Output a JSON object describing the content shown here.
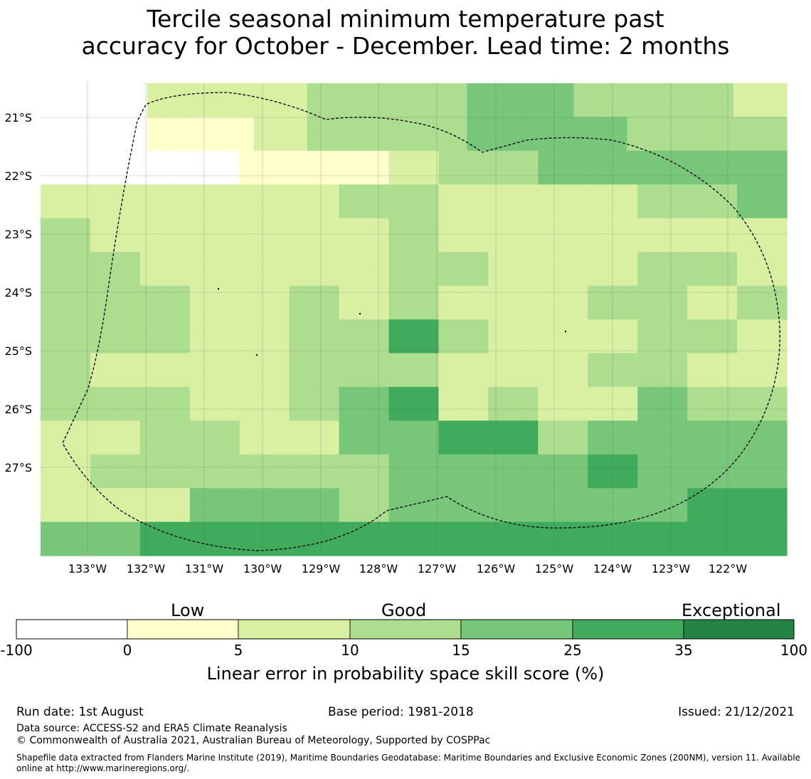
{
  "title": "Tercile seasonal minimum temperature past\naccuracy for October - December. Lead time: 2 months",
  "map": {
    "lon_labels": [
      "133°W",
      "132°W",
      "131°W",
      "130°W",
      "129°W",
      "128°W",
      "127°W",
      "126°W",
      "125°W",
      "124°W",
      "123°W",
      "122°W"
    ],
    "lat_labels": [
      "21°S",
      "22°S",
      "23°S",
      "24°S",
      "25°S",
      "26°S",
      "27°S"
    ],
    "grid_rows": [
      "KK111222332221",
      "KK001222333222",
      "KKKK00012233333",
      "111111221111223",
      "211111121111111",
      "221111122111221",
      "222112121112212",
      "222112242111221",
      "211112221112211",
      "222112341211322",
      "112211334423333",
      "122222233334333",
      "111333233333344",
      "334444444444444"
    ],
    "palette": {
      "K": "#ffffff",
      "0": "#ffffcc",
      "1": "#d9f0a3",
      "2": "#addd8e",
      "3": "#78c679",
      "4": "#41ab5d",
      "5": "#238443"
    }
  },
  "colorbar": {
    "category_labels": [
      "Low",
      "Good",
      "Exceptional"
    ],
    "ticks": [
      "-100",
      "0",
      "5",
      "10",
      "15",
      "25",
      "35",
      "100"
    ],
    "colors": [
      "#ffffff",
      "#ffffcc",
      "#d9f0a3",
      "#addd8e",
      "#78c679",
      "#41ab5d",
      "#238443"
    ],
    "title": "Linear error in probability space skill score (%)"
  },
  "footer": {
    "run_date": "Run date: 1st August",
    "base_period": "Base period: 1981-2018",
    "issued": "Issued: 21/12/2021",
    "data_source": "Data source: ACCESS-S2 and ERA5 Climate Reanalysis",
    "copyright": "© Commonwealth of Australia 2021, Australian Bureau of Meteorology, Supported by COSPPac",
    "shapefile_line1": "Shapefile data extracted from Flanders Marine Institute (2019), Maritime Boundaries Geodatabase: Maritime Boundaries and Exclusive Economic Zones (200NM), version 11. Available",
    "shapefile_line2": "online at http://www.marineregions.org/."
  }
}
